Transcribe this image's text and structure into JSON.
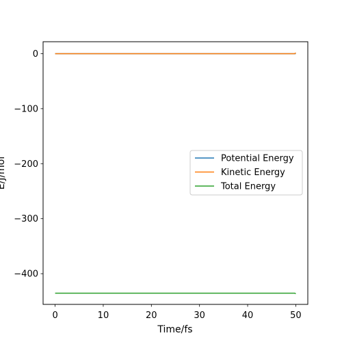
{
  "chart_data": {
    "type": "line",
    "title": "",
    "xlabel": "Time/fs",
    "ylabel": "E/J/mol",
    "xlim": [
      -2.5,
      52.5
    ],
    "ylim": [
      -455.8,
      21.7
    ],
    "xticks": [
      0,
      10,
      20,
      30,
      40,
      50
    ],
    "yticks": [
      0,
      -100,
      -200,
      -300,
      -400
    ],
    "xtick_labels": [
      "0",
      "10",
      "20",
      "30",
      "40",
      "50"
    ],
    "ytick_labels": [
      "0",
      "−100",
      "−200",
      "−300",
      "−400"
    ],
    "grid": false,
    "legend_position": "center-right",
    "series": [
      {
        "name": "Potential Energy",
        "color": "#1f77b4",
        "x": [
          0,
          10,
          20,
          30,
          40,
          49.8,
          50
        ],
        "y": [
          -0.04,
          -0.04,
          -0.04,
          -0.04,
          -0.04,
          -0.04,
          -0.04
        ]
      },
      {
        "name": "Kinetic Energy",
        "color": "#ff7f0e",
        "x": [
          0,
          10,
          20,
          30,
          40,
          49.8,
          50
        ],
        "y": [
          0.0,
          0.0,
          0.0,
          0.0,
          0.0,
          0.0,
          1.5
        ]
      },
      {
        "name": "Total Energy",
        "color": "#2ca02c",
        "x": [
          0,
          10,
          20,
          30,
          40,
          49.8,
          50
        ],
        "y": [
          -435.4,
          -435.4,
          -435.4,
          -435.4,
          -435.4,
          -435.4,
          -436.5
        ]
      }
    ]
  }
}
